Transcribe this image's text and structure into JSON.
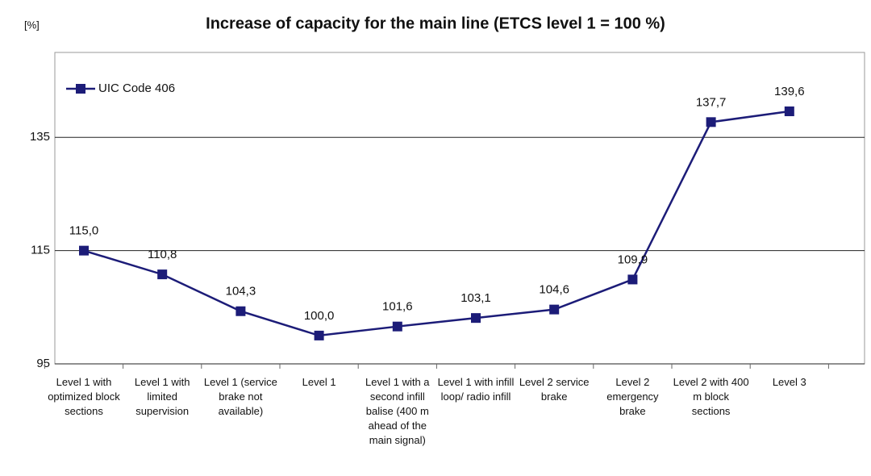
{
  "chart_data": {
    "type": "line",
    "title": "Increase of capacity for the main line (ETCS level 1 = 100 %)",
    "y_label": "[%]",
    "categories": [
      "Level 1 with optimized block sections",
      "Level 1 with limited supervision",
      "Level 1 (service brake not available)",
      "Level 1",
      "Level 1 with a second infill balise (400 m ahead of the main signal)",
      "Level 1 with infill loop/ radio infill",
      "Level 2 service brake",
      "Level 2 emergency brake",
      "Level 2 with 400 m block sections",
      "Level 3"
    ],
    "series": [
      {
        "name": "UIC Code 406",
        "color": "#1c1c78",
        "values": [
          115.0,
          110.8,
          104.3,
          100.0,
          101.6,
          103.1,
          104.6,
          109.9,
          137.7,
          139.6
        ],
        "value_labels": [
          "115,0",
          "110,8",
          "104,3",
          "100,0",
          "101,6",
          "103,1",
          "104,6",
          "109,9",
          "137,7",
          "139,6"
        ]
      }
    ],
    "ylim": [
      95,
      150
    ],
    "yticks": [
      95,
      115,
      135
    ],
    "grid": true,
    "legend": "top-left"
  }
}
